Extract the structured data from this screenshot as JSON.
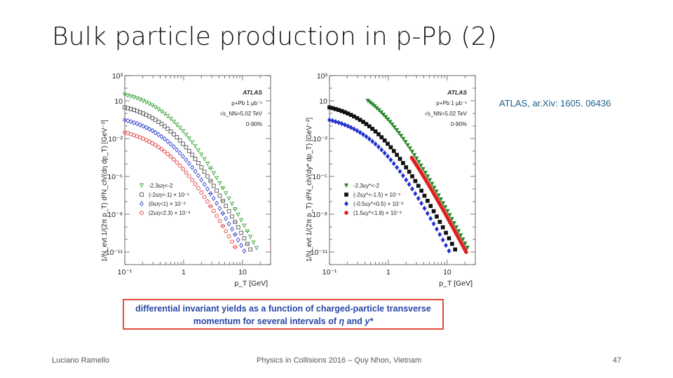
{
  "slide": {
    "title": "Bulk particle production in p-Pb (2)",
    "reference": "ATLAS, ar.Xiv: 1605. 06436",
    "caption_line1": "differential invariant yields as a function of charged-particle transverse",
    "caption_line2": "momentum for several intervals of",
    "caption_eta": "η",
    "caption_and": "and",
    "caption_ystar": "y*",
    "footer_author": "Luciano Ramello",
    "footer_event": "Physics in Collisions 2016 – Quy Nhon, Vietnam",
    "page_number": "47"
  },
  "chart_data": [
    {
      "type": "scatter",
      "xscale": "log",
      "yscale": "log",
      "xlim": [
        0.1,
        30
      ],
      "ylim": [
        1e-12,
        1000
      ],
      "x_tick_labels": [
        "10⁻¹",
        "1",
        "10"
      ],
      "y_tick_labels": [
        "10³",
        "10",
        "10⁻²",
        "10⁻⁵",
        "10⁻⁸",
        "10⁻¹¹"
      ],
      "xlabel": "p_T [GeV]",
      "ylabel": "1/N_evt 1/(2π p_T) d²N_ch/(dη dp_T) [GeV⁻²]",
      "annotations": [
        "ATLAS",
        "p+Pb 1 μb⁻¹",
        "√s_NN=5.02 TeV",
        "0-90%"
      ],
      "legend_position": "bottom-left",
      "marker_style": "open",
      "series": [
        {
          "name": "-2.3≤η<-2",
          "color": "#3aa33a",
          "marker": "triangle",
          "start_y": 30,
          "x_start": 0.1
        },
        {
          "name": "(-2≤η<-1) × 10⁻¹",
          "color": "#555555",
          "marker": "square",
          "start_y": 3,
          "x_start": 0.1
        },
        {
          "name": "(0≤η<1) × 10⁻²",
          "color": "#3344cc",
          "marker": "diamond",
          "start_y": 0.3,
          "x_start": 0.1
        },
        {
          "name": "(2≤η<2.3) × 10⁻³",
          "color": "#e03030",
          "marker": "circle",
          "start_y": 0.03,
          "x_start": 0.1
        }
      ]
    },
    {
      "type": "scatter",
      "xscale": "log",
      "yscale": "log",
      "xlim": [
        0.1,
        30
      ],
      "ylim": [
        1e-12,
        1000
      ],
      "x_tick_labels": [
        "10⁻¹",
        "1",
        "10"
      ],
      "y_tick_labels": [
        "10³",
        "10",
        "10⁻²",
        "10⁻⁵",
        "10⁻⁸",
        "10⁻¹¹"
      ],
      "xlabel": "p_T [GeV]",
      "ylabel": "1/N_evt 1/(2π p_T) d²N_ch/(dy* dp_T) [GeV⁻²]",
      "annotations": [
        "ATLAS",
        "p+Pb 1 μb⁻¹",
        "√s_NN=5.02 TeV",
        "0-90%"
      ],
      "legend_position": "bottom-left",
      "marker_style": "filled",
      "series": [
        {
          "name": "-2.3≤y*<-2",
          "color": "#2a8a2a",
          "marker": "triangle",
          "start_y": 10,
          "x_start": 0.45
        },
        {
          "name": "(-2≤y*<-1.5) × 10⁻¹",
          "color": "#111111",
          "marker": "square",
          "start_y": 3,
          "x_start": 0.1
        },
        {
          "name": "(-0.5≤y*<0.5) × 10⁻²",
          "color": "#2233cc",
          "marker": "diamond",
          "start_y": 0.3,
          "x_start": 0.1
        },
        {
          "name": "(1.5≤y*<1.8) × 10⁻³",
          "color": "#e02020",
          "marker": "circle",
          "start_y": 0.0003,
          "x_start": 2.5
        }
      ]
    }
  ]
}
